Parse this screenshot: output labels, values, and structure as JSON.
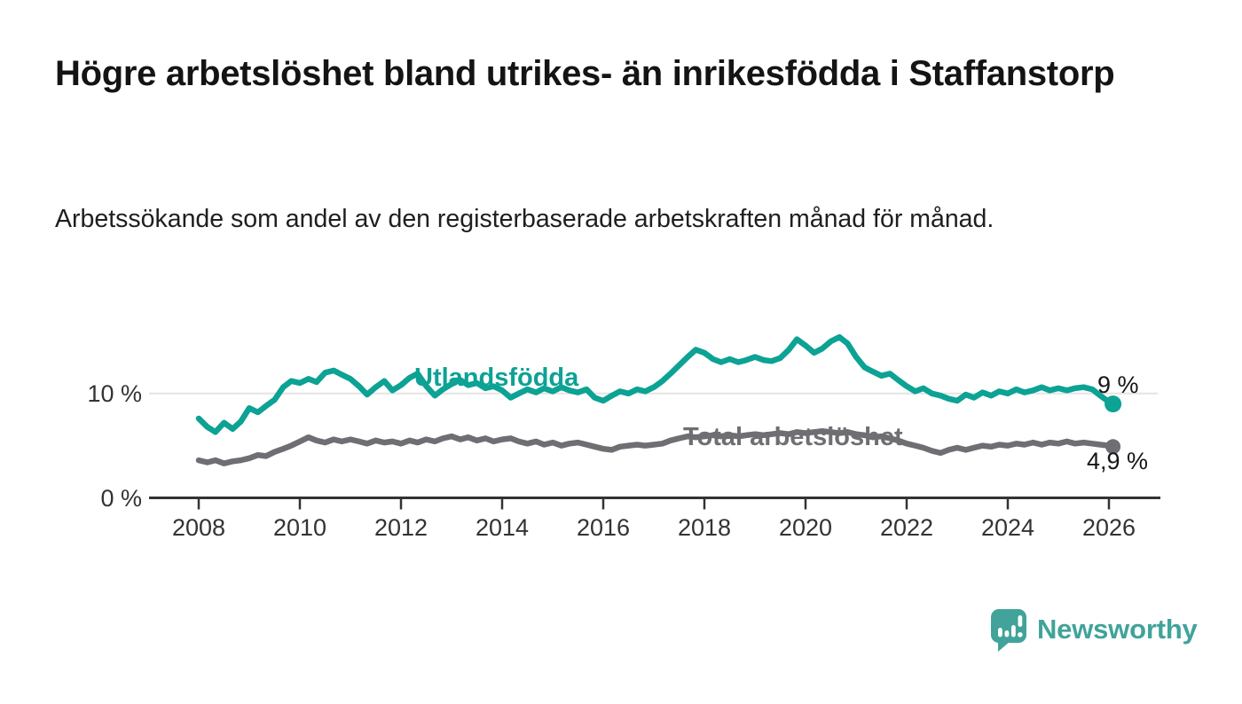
{
  "title": "Högre arbetslöshet bland utrikes- än inrikesfödda i Staffanstorp",
  "subtitle": "Arbetssökande som andel av den registerbaserade arbetskraften månad för månad.",
  "branding": {
    "name": "Newsworthy",
    "icon": "newsworthy-speech-bubble-chart-icon",
    "color": "#41a39a"
  },
  "chart_data": {
    "type": "line",
    "title": "Högre arbetslöshet bland utrikes- än inrikesfödda i Staffanstorp",
    "subtitle": "Arbetssökande som andel av den registerbaserade arbetskraften månad för månad.",
    "xlabel": "",
    "ylabel": "",
    "grid": "horizontal-10-only",
    "legend_position": "inline-labels",
    "x_axis": {
      "ticks": [
        2008,
        2010,
        2012,
        2014,
        2016,
        2018,
        2020,
        2022,
        2024,
        2026
      ],
      "range": [
        2007.0,
        2027.0
      ]
    },
    "y_axis": {
      "ticks": [
        {
          "value": 0,
          "label": "0 %"
        },
        {
          "value": 10,
          "label": "10 %"
        }
      ],
      "gridlines": [
        10
      ],
      "range": [
        0,
        17
      ]
    },
    "series": [
      {
        "name": "Utlandsfödda",
        "color": "#0ca294",
        "end_label": "9 %",
        "end_value": 9.0,
        "points": [
          [
            2008,
            7.6
          ],
          [
            2008.17,
            6.8
          ],
          [
            2008.33,
            6.3
          ],
          [
            2008.5,
            7.2
          ],
          [
            2008.67,
            6.6
          ],
          [
            2008.83,
            7.3
          ],
          [
            2009,
            8.6
          ],
          [
            2009.17,
            8.2
          ],
          [
            2009.33,
            8.8
          ],
          [
            2009.5,
            9.4
          ],
          [
            2009.67,
            10.6
          ],
          [
            2009.83,
            11.2
          ],
          [
            2010,
            11.0
          ],
          [
            2010.17,
            11.4
          ],
          [
            2010.33,
            11.1
          ],
          [
            2010.5,
            12.0
          ],
          [
            2010.67,
            12.2
          ],
          [
            2010.83,
            11.8
          ],
          [
            2011,
            11.4
          ],
          [
            2011.17,
            10.7
          ],
          [
            2011.33,
            9.9
          ],
          [
            2011.5,
            10.6
          ],
          [
            2011.67,
            11.2
          ],
          [
            2011.83,
            10.3
          ],
          [
            2012,
            10.8
          ],
          [
            2012.17,
            11.5
          ],
          [
            2012.33,
            11.9
          ],
          [
            2012.5,
            10.7
          ],
          [
            2012.67,
            9.8
          ],
          [
            2012.83,
            10.4
          ],
          [
            2013,
            10.9
          ],
          [
            2013.17,
            11.3
          ],
          [
            2013.33,
            10.8
          ],
          [
            2013.5,
            11.0
          ],
          [
            2013.67,
            10.5
          ],
          [
            2013.83,
            10.7
          ],
          [
            2014,
            10.3
          ],
          [
            2014.17,
            9.6
          ],
          [
            2014.33,
            10.0
          ],
          [
            2014.5,
            10.4
          ],
          [
            2014.67,
            10.1
          ],
          [
            2014.83,
            10.5
          ],
          [
            2015,
            10.2
          ],
          [
            2015.17,
            10.6
          ],
          [
            2015.33,
            10.3
          ],
          [
            2015.5,
            10.1
          ],
          [
            2015.67,
            10.4
          ],
          [
            2015.83,
            9.6
          ],
          [
            2016,
            9.3
          ],
          [
            2016.17,
            9.8
          ],
          [
            2016.33,
            10.2
          ],
          [
            2016.5,
            10.0
          ],
          [
            2016.67,
            10.4
          ],
          [
            2016.83,
            10.2
          ],
          [
            2017,
            10.6
          ],
          [
            2017.17,
            11.2
          ],
          [
            2017.33,
            11.9
          ],
          [
            2017.5,
            12.7
          ],
          [
            2017.67,
            13.5
          ],
          [
            2017.83,
            14.2
          ],
          [
            2018,
            13.9
          ],
          [
            2018.17,
            13.3
          ],
          [
            2018.33,
            13.0
          ],
          [
            2018.5,
            13.3
          ],
          [
            2018.67,
            13.0
          ],
          [
            2018.83,
            13.2
          ],
          [
            2019,
            13.5
          ],
          [
            2019.17,
            13.2
          ],
          [
            2019.33,
            13.1
          ],
          [
            2019.5,
            13.4
          ],
          [
            2019.67,
            14.2
          ],
          [
            2019.83,
            15.2
          ],
          [
            2020,
            14.6
          ],
          [
            2020.17,
            13.9
          ],
          [
            2020.33,
            14.3
          ],
          [
            2020.5,
            15.0
          ],
          [
            2020.67,
            15.4
          ],
          [
            2020.83,
            14.8
          ],
          [
            2021,
            13.5
          ],
          [
            2021.17,
            12.5
          ],
          [
            2021.33,
            12.1
          ],
          [
            2021.5,
            11.7
          ],
          [
            2021.67,
            11.9
          ],
          [
            2021.83,
            11.3
          ],
          [
            2022,
            10.7
          ],
          [
            2022.17,
            10.2
          ],
          [
            2022.33,
            10.5
          ],
          [
            2022.5,
            10.0
          ],
          [
            2022.67,
            9.8
          ],
          [
            2022.83,
            9.5
          ],
          [
            2023,
            9.3
          ],
          [
            2023.17,
            9.9
          ],
          [
            2023.33,
            9.6
          ],
          [
            2023.5,
            10.1
          ],
          [
            2023.67,
            9.8
          ],
          [
            2023.83,
            10.2
          ],
          [
            2024,
            10.0
          ],
          [
            2024.17,
            10.4
          ],
          [
            2024.33,
            10.1
          ],
          [
            2024.5,
            10.3
          ],
          [
            2024.67,
            10.6
          ],
          [
            2024.83,
            10.3
          ],
          [
            2025,
            10.5
          ],
          [
            2025.17,
            10.3
          ],
          [
            2025.33,
            10.5
          ],
          [
            2025.5,
            10.6
          ],
          [
            2025.67,
            10.4
          ],
          [
            2025.83,
            9.8
          ],
          [
            2026,
            9.2
          ],
          [
            2026.08,
            9.0
          ]
        ]
      },
      {
        "name": "Total arbetslöshet",
        "color": "#6e6e73",
        "end_label": "4,9 %",
        "end_value": 4.9,
        "points": [
          [
            2008,
            3.6
          ],
          [
            2008.17,
            3.4
          ],
          [
            2008.33,
            3.6
          ],
          [
            2008.5,
            3.3
          ],
          [
            2008.67,
            3.5
          ],
          [
            2008.83,
            3.6
          ],
          [
            2009,
            3.8
          ],
          [
            2009.17,
            4.1
          ],
          [
            2009.33,
            4.0
          ],
          [
            2009.5,
            4.4
          ],
          [
            2009.67,
            4.7
          ],
          [
            2009.83,
            5.0
          ],
          [
            2010,
            5.4
          ],
          [
            2010.17,
            5.8
          ],
          [
            2010.33,
            5.5
          ],
          [
            2010.5,
            5.3
          ],
          [
            2010.67,
            5.6
          ],
          [
            2010.83,
            5.4
          ],
          [
            2011,
            5.6
          ],
          [
            2011.17,
            5.4
          ],
          [
            2011.33,
            5.2
          ],
          [
            2011.5,
            5.5
          ],
          [
            2011.67,
            5.3
          ],
          [
            2011.83,
            5.4
          ],
          [
            2012,
            5.2
          ],
          [
            2012.17,
            5.5
          ],
          [
            2012.33,
            5.3
          ],
          [
            2012.5,
            5.6
          ],
          [
            2012.67,
            5.4
          ],
          [
            2012.83,
            5.7
          ],
          [
            2013,
            5.9
          ],
          [
            2013.17,
            5.6
          ],
          [
            2013.33,
            5.8
          ],
          [
            2013.5,
            5.5
          ],
          [
            2013.67,
            5.7
          ],
          [
            2013.83,
            5.4
          ],
          [
            2014,
            5.6
          ],
          [
            2014.17,
            5.7
          ],
          [
            2014.33,
            5.4
          ],
          [
            2014.5,
            5.2
          ],
          [
            2014.67,
            5.4
          ],
          [
            2014.83,
            5.1
          ],
          [
            2015,
            5.3
          ],
          [
            2015.17,
            5.0
          ],
          [
            2015.33,
            5.2
          ],
          [
            2015.5,
            5.3
          ],
          [
            2015.67,
            5.1
          ],
          [
            2015.83,
            4.9
          ],
          [
            2016,
            4.7
          ],
          [
            2016.17,
            4.6
          ],
          [
            2016.33,
            4.9
          ],
          [
            2016.5,
            5.0
          ],
          [
            2016.67,
            5.1
          ],
          [
            2016.83,
            5.0
          ],
          [
            2017,
            5.1
          ],
          [
            2017.17,
            5.2
          ],
          [
            2017.33,
            5.5
          ],
          [
            2017.5,
            5.7
          ],
          [
            2017.67,
            5.9
          ],
          [
            2017.83,
            5.8
          ],
          [
            2018,
            5.9
          ],
          [
            2018.17,
            6.0
          ],
          [
            2018.33,
            5.9
          ],
          [
            2018.5,
            6.0
          ],
          [
            2018.67,
            5.9
          ],
          [
            2018.83,
            6.0
          ],
          [
            2019,
            6.1
          ],
          [
            2019.17,
            6.0
          ],
          [
            2019.33,
            6.1
          ],
          [
            2019.5,
            6.2
          ],
          [
            2019.67,
            6.1
          ],
          [
            2019.83,
            6.3
          ],
          [
            2020,
            6.2
          ],
          [
            2020.17,
            6.3
          ],
          [
            2020.33,
            6.4
          ],
          [
            2020.5,
            6.3
          ],
          [
            2020.67,
            6.2
          ],
          [
            2020.83,
            6.3
          ],
          [
            2021,
            6.1
          ],
          [
            2021.17,
            6.0
          ],
          [
            2021.33,
            5.8
          ],
          [
            2021.5,
            5.9
          ],
          [
            2021.67,
            5.7
          ],
          [
            2021.83,
            5.5
          ],
          [
            2022,
            5.2
          ],
          [
            2022.17,
            5.0
          ],
          [
            2022.33,
            4.8
          ],
          [
            2022.5,
            4.5
          ],
          [
            2022.67,
            4.3
          ],
          [
            2022.83,
            4.6
          ],
          [
            2023,
            4.8
          ],
          [
            2023.17,
            4.6
          ],
          [
            2023.33,
            4.8
          ],
          [
            2023.5,
            5.0
          ],
          [
            2023.67,
            4.9
          ],
          [
            2023.83,
            5.1
          ],
          [
            2024,
            5.0
          ],
          [
            2024.17,
            5.2
          ],
          [
            2024.33,
            5.1
          ],
          [
            2024.5,
            5.3
          ],
          [
            2024.67,
            5.1
          ],
          [
            2024.83,
            5.3
          ],
          [
            2025,
            5.2
          ],
          [
            2025.17,
            5.4
          ],
          [
            2025.33,
            5.2
          ],
          [
            2025.5,
            5.3
          ],
          [
            2025.67,
            5.2
          ],
          [
            2025.83,
            5.1
          ],
          [
            2026,
            5.0
          ],
          [
            2026.08,
            4.9
          ]
        ]
      }
    ]
  }
}
